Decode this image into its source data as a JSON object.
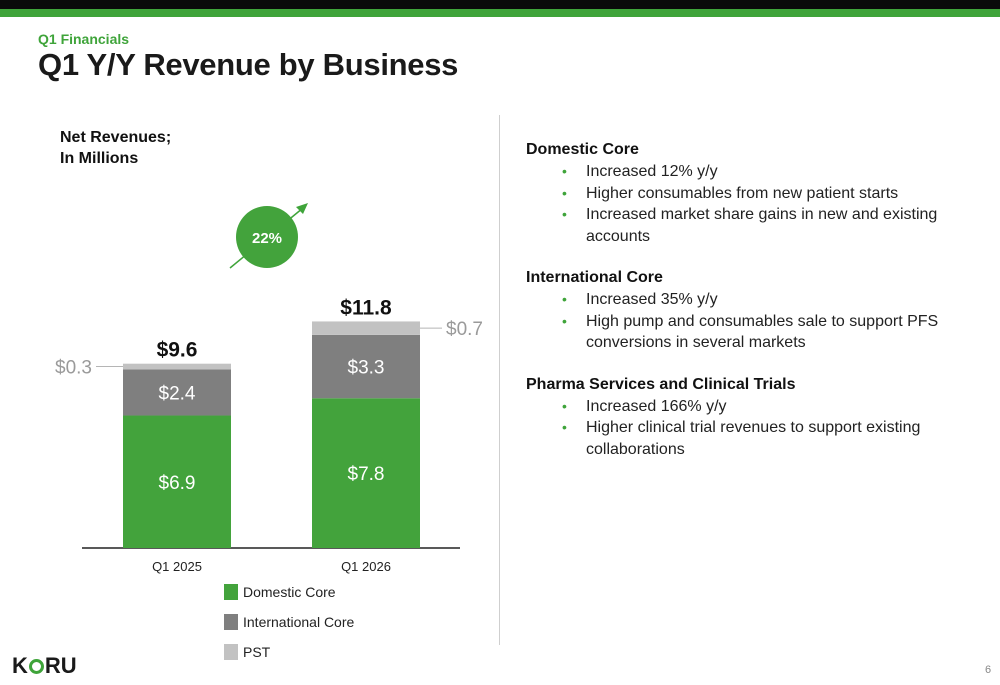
{
  "header": {
    "section_label": "Q1 Financials",
    "title": "Q1 Y/Y Revenue by Business"
  },
  "chart_title_lines": [
    "Net Revenues;",
    "In Millions"
  ],
  "growth_badge": "22%",
  "colors": {
    "brand_green": "#3fa43a",
    "domestic": "#43a33c",
    "international": "#7f7f7f",
    "pst": "#c2c2c2",
    "top_bar": "#0a0a0a"
  },
  "chart_data": {
    "type": "bar",
    "stacked": true,
    "categories": [
      "Q1 2025",
      "Q1 2026"
    ],
    "series": [
      {
        "name": "Domestic Core",
        "values": [
          6.9,
          7.8
        ],
        "labels": [
          "$6.9",
          "$7.8"
        ]
      },
      {
        "name": "International Core",
        "values": [
          2.4,
          3.3
        ],
        "labels": [
          "$2.4",
          "$3.3"
        ]
      },
      {
        "name": "PST",
        "values": [
          0.3,
          0.7
        ],
        "labels": [
          "$0.3",
          "$0.7"
        ]
      }
    ],
    "totals": [
      9.6,
      11.8
    ],
    "total_labels": [
      "$9.6",
      "$11.8"
    ],
    "growth_label": "22%",
    "title": "Net Revenues; In Millions",
    "legend_position": "bottom",
    "grid": false
  },
  "legend": [
    {
      "label": "Domestic Core",
      "color": "#43a33c"
    },
    {
      "label": "International Core",
      "color": "#7f7f7f"
    },
    {
      "label": "PST",
      "color": "#c2c2c2"
    }
  ],
  "bullets": [
    {
      "heading": "Domestic Core",
      "items": [
        "Increased 12% y/y",
        "Higher consumables from new patient starts",
        "Increased market share gains in new and existing accounts"
      ]
    },
    {
      "heading": "International Core",
      "items": [
        "Increased 35% y/y",
        "High pump and consumables sale to support PFS conversions in several markets"
      ]
    },
    {
      "heading": "Pharma Services and Clinical Trials",
      "items": [
        "Increased 166% y/y",
        "Higher clinical trial revenues to support existing collaborations"
      ]
    }
  ],
  "bullet_symbol": "•",
  "footer": {
    "logo_left": "K",
    "logo_right": "RU",
    "page_number": "6"
  }
}
